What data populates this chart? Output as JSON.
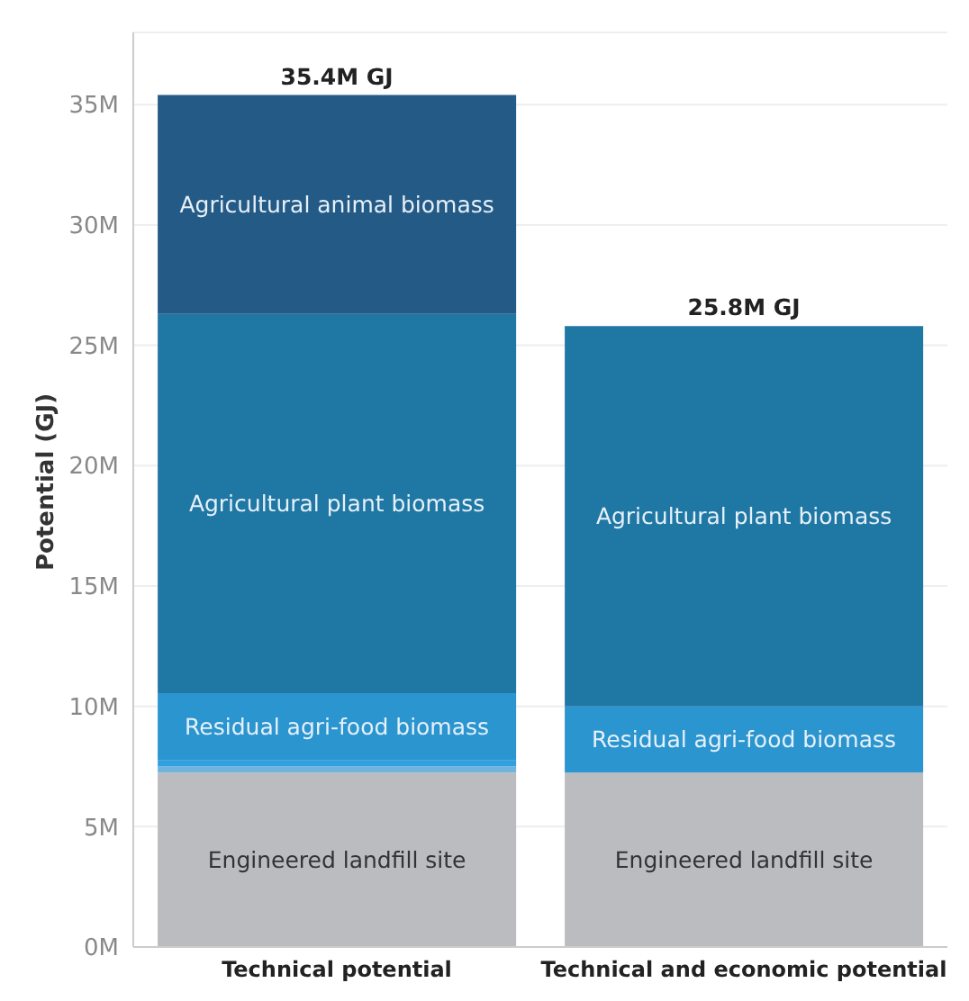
{
  "chart_data": {
    "type": "bar",
    "stacked": true,
    "ylabel": "Potential (GJ)",
    "categories": [
      "Technical potential",
      "Technical and economic potential"
    ],
    "series": [
      {
        "name": "Engineered landfill site",
        "color": "#bbbcc0",
        "values": [
          7250000,
          7250000
        ]
      },
      {
        "color": "#70b4de",
        "values": [
          250000,
          null
        ]
      },
      {
        "color": "#30a0e0",
        "values": [
          250000,
          null
        ]
      },
      {
        "name": "Residual agri-food biomass",
        "color": "#2b95d0",
        "values": [
          2800000,
          2750000
        ]
      },
      {
        "name": "Agricultural plant biomass",
        "color": "#1f77a4",
        "values": [
          15750000,
          15800000
        ]
      },
      {
        "name": "Agricultural animal biomass",
        "color": "#235a86",
        "values": [
          9100000,
          null
        ]
      }
    ],
    "totals": [
      "35.4M GJ",
      "25.8M GJ"
    ],
    "ylim": [
      0,
      38000000
    ],
    "yticks": [
      {
        "value": 0,
        "label": "0M"
      },
      {
        "value": 5000000,
        "label": "5M"
      },
      {
        "value": 10000000,
        "label": "10M"
      },
      {
        "value": 15000000,
        "label": "15M"
      },
      {
        "value": 20000000,
        "label": "20M"
      },
      {
        "value": 25000000,
        "label": "25M"
      },
      {
        "value": 30000000,
        "label": "30M"
      },
      {
        "value": 35000000,
        "label": "35M"
      }
    ],
    "grid": "y",
    "legend": false
  }
}
